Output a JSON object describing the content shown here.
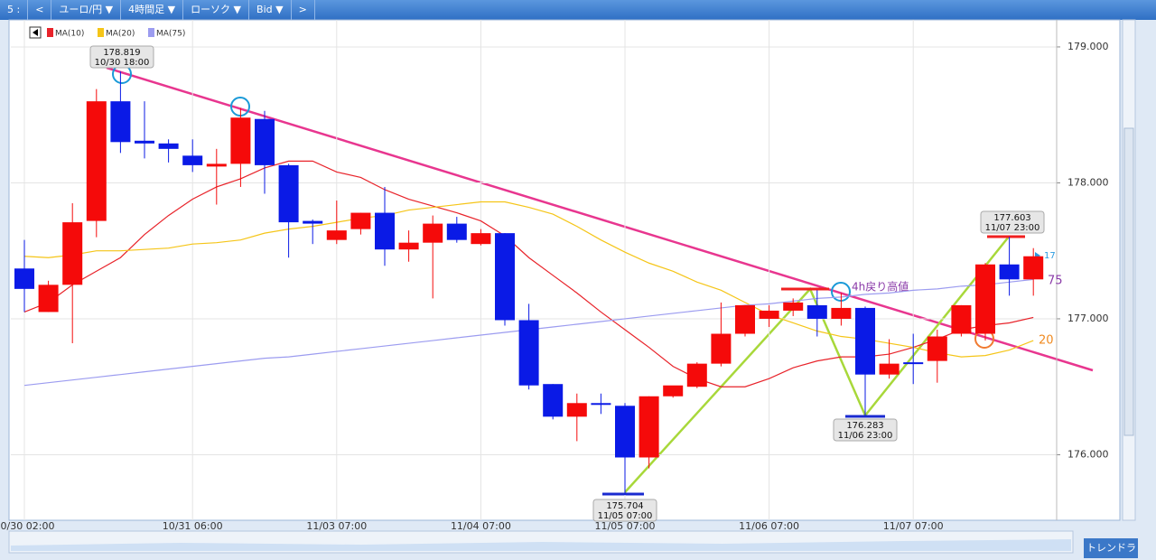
{
  "toolbar": {
    "items": [
      "5 :",
      "<",
      "ユーロ/円 ▼",
      "4時間足 ▼",
      "ローソク ▼",
      "Bid ▼",
      ">"
    ],
    "button": "トレンドラ"
  },
  "chart_data": {
    "type": "candlestick",
    "categories": [
      "10/30 02:00",
      null,
      null,
      null,
      null,
      null,
      null,
      "10/31 06:00",
      null,
      null,
      null,
      null,
      null,
      "11/03 07:00",
      null,
      null,
      null,
      null,
      null,
      "11/04 07:00",
      null,
      null,
      null,
      null,
      null,
      "11/05 07:00",
      null,
      null,
      null,
      null,
      null,
      "11/06 07:00",
      null,
      null,
      null,
      null,
      null,
      "11/07 07:00",
      null,
      null,
      null,
      null,
      null
    ],
    "open": [
      177.37,
      177.05,
      177.25,
      177.72,
      178.6,
      178.31,
      178.29,
      178.2,
      178.12,
      178.14,
      178.47,
      178.13,
      177.72,
      177.58,
      177.66,
      177.78,
      177.51,
      177.56,
      177.7,
      177.55,
      177.63,
      176.99,
      176.52,
      176.28,
      176.38,
      176.36,
      175.98,
      176.43,
      176.5,
      176.67,
      176.89,
      177.0,
      177.06,
      177.1,
      177.0,
      177.08,
      176.59,
      176.68,
      176.69,
      176.89,
      176.89,
      177.4,
      177.29
    ],
    "high": [
      177.58,
      177.28,
      177.85,
      178.69,
      178.819,
      178.6,
      178.32,
      178.32,
      178.25,
      178.55,
      178.53,
      178.14,
      177.73,
      177.87,
      177.78,
      177.97,
      177.65,
      177.76,
      177.75,
      177.66,
      177.63,
      177.11,
      176.52,
      176.45,
      176.45,
      176.38,
      176.43,
      176.5,
      176.68,
      177.12,
      177.1,
      177.1,
      177.15,
      177.21,
      177.19,
      177.09,
      176.85,
      176.89,
      176.92,
      177.1,
      177.41,
      177.603,
      177.52
    ],
    "low": [
      177.05,
      177.05,
      176.82,
      177.6,
      178.22,
      178.18,
      178.15,
      178.08,
      177.84,
      177.97,
      177.92,
      177.45,
      177.55,
      177.55,
      177.62,
      177.39,
      177.42,
      177.15,
      177.56,
      177.54,
      176.95,
      176.48,
      176.26,
      176.1,
      176.3,
      175.704,
      175.9,
      176.42,
      176.49,
      176.65,
      176.87,
      176.94,
      177.02,
      176.87,
      176.95,
      176.283,
      176.56,
      176.52,
      176.53,
      176.87,
      176.84,
      177.17,
      177.17
    ],
    "close": [
      177.22,
      177.25,
      177.71,
      178.6,
      178.3,
      178.29,
      178.25,
      178.13,
      178.14,
      178.48,
      178.13,
      177.71,
      177.7,
      177.65,
      177.78,
      177.51,
      177.56,
      177.7,
      177.58,
      177.63,
      176.99,
      176.51,
      176.28,
      176.38,
      176.37,
      175.98,
      176.43,
      176.51,
      176.67,
      176.89,
      177.1,
      177.06,
      177.12,
      177.0,
      177.08,
      176.59,
      176.67,
      176.67,
      176.87,
      177.1,
      177.4,
      177.29,
      177.46
    ],
    "up_color": "#f50a0a",
    "down_color": "#0a1ae6",
    "series": [
      {
        "name": "MA(10)",
        "color": "#e8232a",
        "values": [
          177.05,
          177.12,
          177.25,
          177.35,
          177.45,
          177.62,
          177.76,
          177.88,
          177.97,
          178.03,
          178.11,
          178.16,
          178.16,
          178.08,
          178.04,
          177.95,
          177.88,
          177.83,
          177.78,
          177.72,
          177.61,
          177.45,
          177.32,
          177.19,
          177.05,
          176.92,
          176.79,
          176.65,
          176.56,
          176.5,
          176.5,
          176.56,
          176.64,
          176.69,
          176.72,
          176.72,
          176.74,
          176.79,
          176.85,
          176.92,
          176.95,
          176.97,
          177.01
        ]
      },
      {
        "name": "MA(20)",
        "color": "#f5c518",
        "values": [
          177.46,
          177.45,
          177.47,
          177.5,
          177.5,
          177.51,
          177.52,
          177.55,
          177.56,
          177.58,
          177.63,
          177.66,
          177.68,
          177.71,
          177.74,
          177.76,
          177.8,
          177.82,
          177.84,
          177.86,
          177.86,
          177.82,
          177.77,
          177.68,
          177.58,
          177.49,
          177.41,
          177.35,
          177.27,
          177.21,
          177.12,
          177.03,
          176.97,
          176.91,
          176.87,
          176.85,
          176.82,
          176.79,
          176.75,
          176.72,
          176.73,
          176.77,
          176.84
        ]
      },
      {
        "name": "MA(75)",
        "color": "#9c9cf0",
        "values": [
          176.51,
          176.53,
          176.55,
          176.57,
          176.59,
          176.61,
          176.63,
          176.65,
          176.67,
          176.69,
          176.71,
          176.72,
          176.74,
          176.76,
          176.78,
          176.8,
          176.82,
          176.84,
          176.86,
          176.88,
          176.9,
          176.92,
          176.94,
          176.96,
          176.98,
          177.0,
          177.02,
          177.04,
          177.06,
          177.08,
          177.1,
          177.11,
          177.13,
          177.15,
          177.16,
          177.18,
          177.19,
          177.21,
          177.22,
          177.24,
          177.25,
          177.27,
          177.29
        ]
      }
    ],
    "ylim": [
      175.538,
      179.199
    ],
    "yticks": [
      {
        "value": 176,
        "label": "176.000"
      },
      {
        "value": 177,
        "label": "177.000"
      },
      {
        "value": 178,
        "label": "178.000"
      },
      {
        "value": 179,
        "label": "179.000"
      }
    ],
    "grid": true,
    "annotations": [
      {
        "value": "178.819",
        "time": "10/30 18:00"
      },
      {
        "value": "175.704",
        "time": "11/05 07:00"
      },
      {
        "value": "176.283",
        "time": "11/06 23:00"
      },
      {
        "value": "177.603",
        "time": "11/07 23:00"
      }
    ],
    "notes": [
      "4h戻り高値",
      "75",
      "20",
      "17"
    ]
  }
}
